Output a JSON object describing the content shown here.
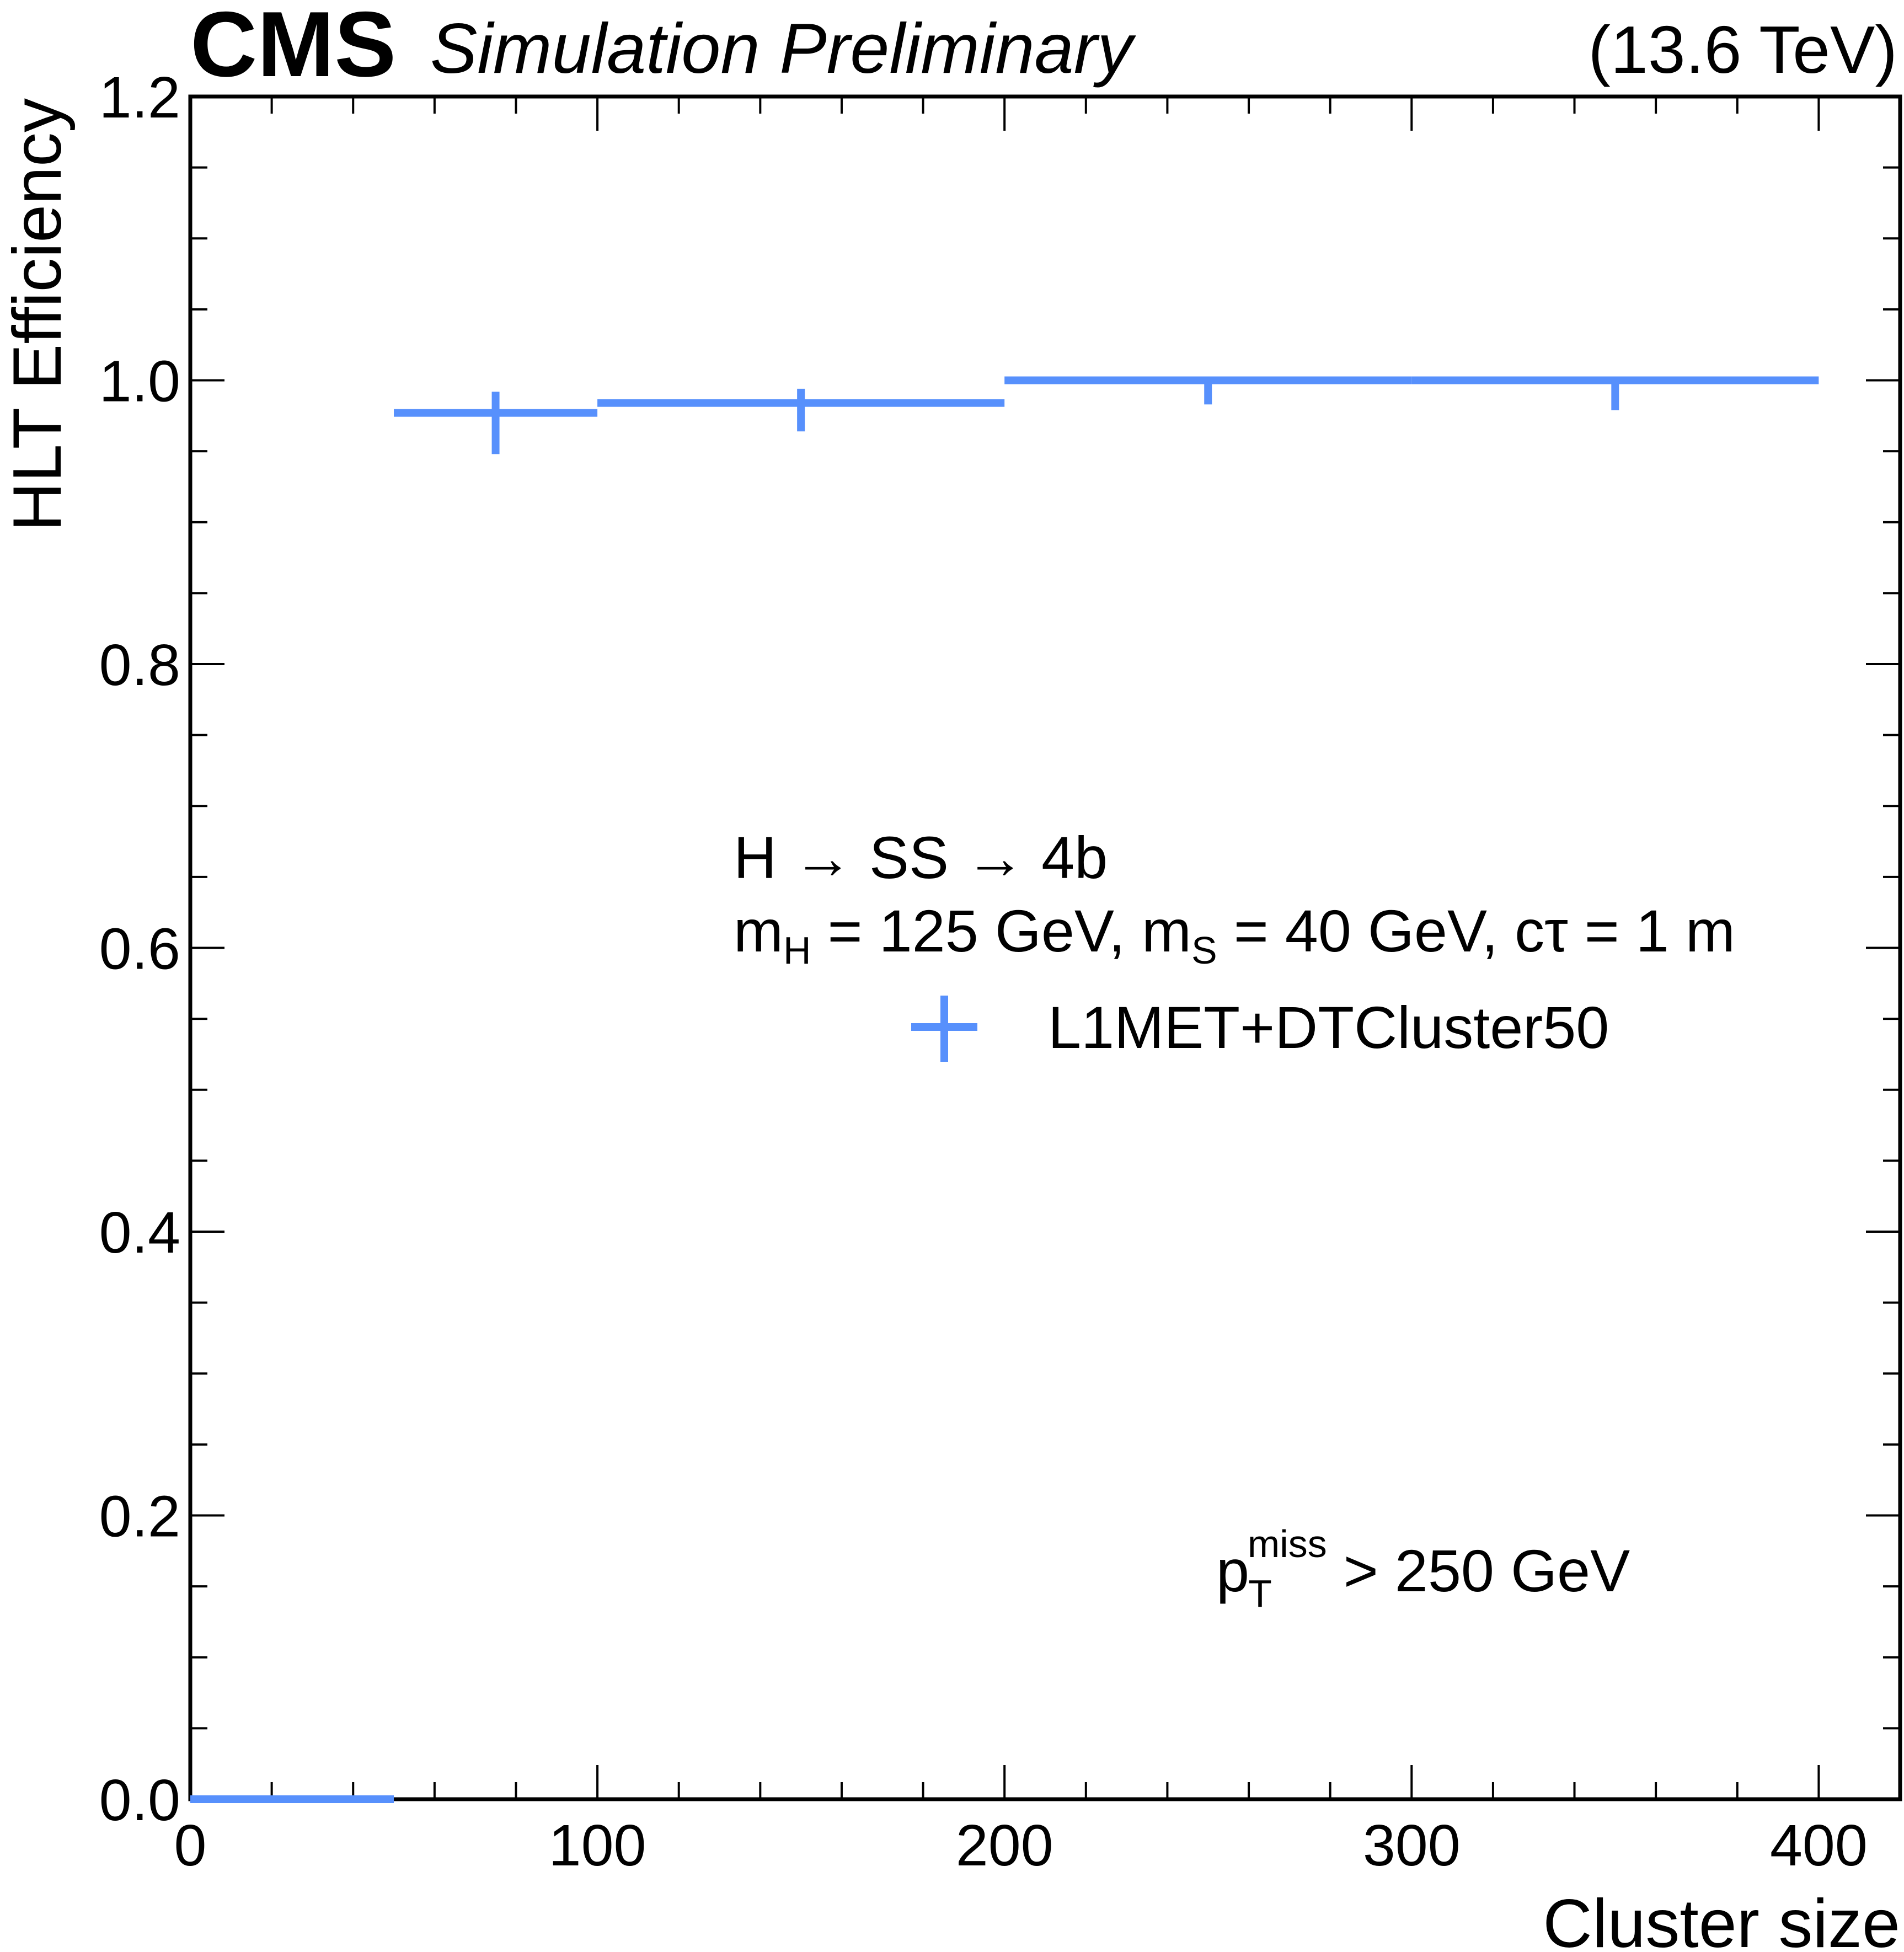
{
  "header": {
    "experiment": "CMS",
    "status": "Simulation Preliminary",
    "energy": "(13.6 TeV)"
  },
  "annotations": {
    "process": "H → SS → 4b",
    "mass_line": {
      "m1": "m",
      "m1_sub": "H",
      "m1_val": " = 125 GeV, m",
      "m2_sub": "S",
      "m2_val": " = 40 GeV, cτ = 1 m"
    },
    "cut": {
      "p": "p",
      "sub": "T",
      "sup": "miss",
      "rest": " > 250 GeV"
    }
  },
  "colors": {
    "series": "#5790fc",
    "axis": "#000000"
  },
  "chart_data": {
    "type": "histogram",
    "title": "",
    "xlabel": "Cluster size",
    "ylabel": "HLT Efficiency",
    "xlim": [
      0,
      420
    ],
    "ylim": [
      0,
      1.2
    ],
    "x_ticks": [
      0,
      100,
      200,
      300,
      400
    ],
    "x_tick_labels": [
      "0",
      "100",
      "200",
      "300",
      "400"
    ],
    "y_ticks": [
      0.0,
      0.2,
      0.4,
      0.6,
      0.8,
      1.0,
      1.2
    ],
    "y_tick_labels": [
      "0.0",
      "0.2",
      "0.4",
      "0.6",
      "0.8",
      "1.0",
      "1.2"
    ],
    "grid": false,
    "legend_position": "center-right",
    "series": [
      {
        "name": "L1MET+DTCluster50",
        "color": "#5790fc",
        "bins": [
          {
            "x_low": 0,
            "x_high": 50,
            "value": 0.0,
            "err_low": 0.0,
            "err_high": 0.0
          },
          {
            "x_low": 50,
            "x_high": 100,
            "value": 0.977,
            "err_low": 0.029,
            "err_high": 0.015
          },
          {
            "x_low": 100,
            "x_high": 200,
            "value": 0.984,
            "err_low": 0.02,
            "err_high": 0.01
          },
          {
            "x_low": 200,
            "x_high": 300,
            "value": 1.0,
            "err_low": 0.017,
            "err_high": 0.0
          },
          {
            "x_low": 300,
            "x_high": 400,
            "value": 1.0,
            "err_low": 0.021,
            "err_high": 0.0
          }
        ]
      }
    ]
  }
}
